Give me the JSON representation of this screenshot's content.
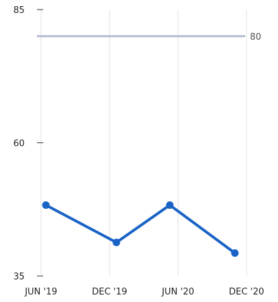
{
  "chart_data": {
    "type": "line",
    "title": "",
    "xlabel": "",
    "ylabel": "",
    "ylim": [
      35,
      85
    ],
    "y_ticks": [
      "85",
      "60",
      "35"
    ],
    "x_ticks": [
      "JUN '19",
      "DEC '19",
      "JUN '20",
      "DEC '20"
    ],
    "x_tick_dates": [
      "2019-06-01",
      "2019-12-01",
      "2020-06-01",
      "2020-12-01"
    ],
    "grid": {
      "vertical": true,
      "horizontal": false
    },
    "reference_line": {
      "value": 80,
      "label": "80",
      "color": "#b2bccb"
    },
    "series": [
      {
        "color": "#1a63c6",
        "points": [
          {
            "x": "2019-06-01",
            "y": 48.3
          },
          {
            "x": "2019-12-01",
            "y": 41.3
          },
          {
            "x": "2020-06-01",
            "y": 48.3
          },
          {
            "x": "2020-12-01",
            "y": 39.3
          }
        ]
      }
    ],
    "colors": {
      "grid": "#e0e0e0",
      "axis": "#333333"
    }
  }
}
